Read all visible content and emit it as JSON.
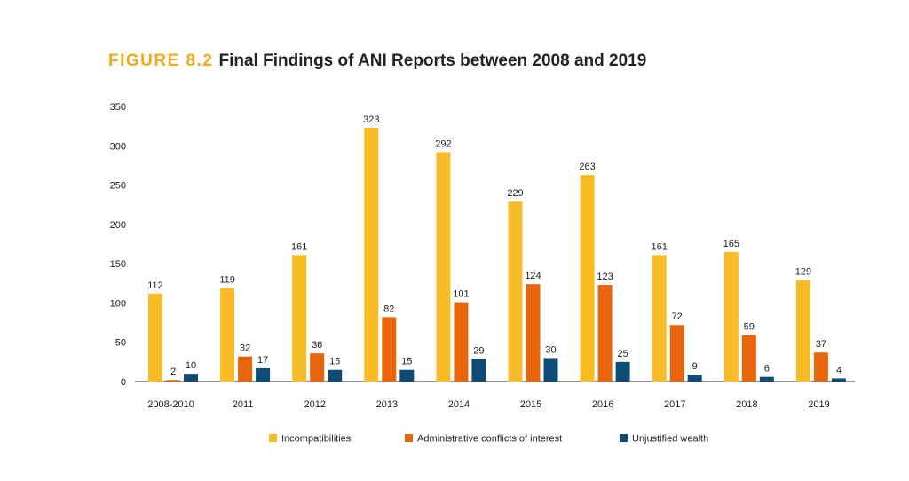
{
  "figure_label": "FIGURE 8.2",
  "figure_title": "Final Findings of ANI Reports between 2008 and 2019",
  "chart_data": {
    "type": "bar",
    "title": "Final Findings of ANI Reports between 2008 and 2019",
    "categories": [
      "2008-2010",
      "2011",
      "2012",
      "2013",
      "2014",
      "2015",
      "2016",
      "2017",
      "2018",
      "2019"
    ],
    "series": [
      {
        "name": "Incompatibilities",
        "color": "#f8bd26",
        "values": [
          112,
          119,
          161,
          323,
          292,
          229,
          263,
          161,
          165,
          129
        ]
      },
      {
        "name": "Administrative conflicts of interest",
        "color": "#e8650c",
        "values": [
          2,
          32,
          36,
          82,
          101,
          124,
          123,
          72,
          59,
          37
        ]
      },
      {
        "name": "Unjustified wealth",
        "color": "#0f4c75",
        "values": [
          10,
          17,
          15,
          15,
          29,
          30,
          25,
          9,
          6,
          4
        ]
      }
    ],
    "ylim": [
      0,
      350
    ],
    "yticks": [
      0,
      50,
      100,
      150,
      200,
      250,
      300,
      350
    ],
    "grid": false,
    "legend": "bottom",
    "data_labels": true
  }
}
